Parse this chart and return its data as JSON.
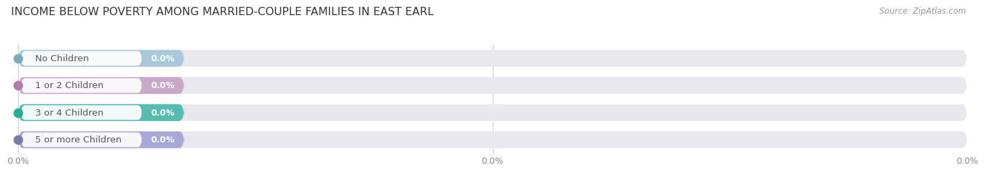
{
  "title": "INCOME BELOW POVERTY AMONG MARRIED-COUPLE FAMILIES IN EAST EARL",
  "source": "Source: ZipAtlas.com",
  "categories": [
    "No Children",
    "1 or 2 Children",
    "3 or 4 Children",
    "5 or more Children"
  ],
  "values": [
    0.0,
    0.0,
    0.0,
    0.0
  ],
  "bar_colors": [
    "#aac8dc",
    "#c9a8c8",
    "#55bdb0",
    "#a8a8d8"
  ],
  "dot_colors": [
    "#7aaabb",
    "#b07aaa",
    "#2aaa9a",
    "#7a7aaa"
  ],
  "background_color": "#ffffff",
  "bar_bg_color": "#e8e8ee",
  "title_fontsize": 11.5,
  "label_fontsize": 9.5,
  "value_fontsize": 9,
  "source_fontsize": 8.5,
  "tick_fontsize": 9,
  "x_ticks": [
    0.0,
    50.0,
    100.0
  ],
  "x_tick_labels": [
    "0.0%",
    "0.0%",
    "0.0%"
  ]
}
